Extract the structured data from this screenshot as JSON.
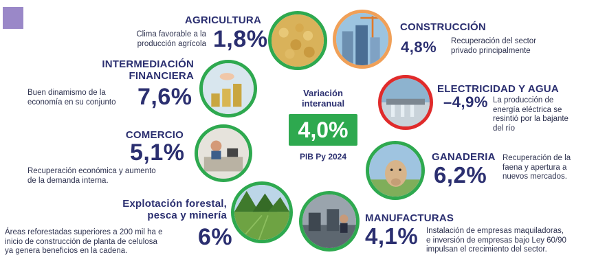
{
  "center": {
    "heading": "Variación\ninteranual",
    "value": "4,0%",
    "footer": "PIB Py 2024"
  },
  "colors": {
    "green": "#2ea94f",
    "navy": "#2b2f70",
    "orange": "#f0a058",
    "red": "#e02b2b",
    "corner": "#9a88c8"
  },
  "sectors": {
    "agricultura": {
      "title": "AGRICULTURA",
      "pct": "1,8%",
      "desc": "Clima favorable a la\nproducción agrícola",
      "icon": "soybeans-icon"
    },
    "construccion": {
      "title": "CONSTRUCCIÓN",
      "pct": "4,8%",
      "desc": "Recuperación del sector\nprivado principalmente",
      "icon": "buildings-crane-icon"
    },
    "intermediacion": {
      "title": "INTERMEDIACIÓN\nFINANCIERA",
      "pct": "7,6%",
      "desc": "Buen dinamismo de la\neconomía en su conjunto",
      "icon": "coins-stack-icon"
    },
    "electricidad": {
      "title": "ELECTRICIDAD Y AGUA",
      "pct": "–4,9%",
      "desc": "La producción de\nenergía eléctrica se\nresintió por la bajante\ndel río",
      "icon": "dam-icon"
    },
    "comercio": {
      "title": "COMERCIO",
      "pct": "5,1%",
      "desc": "Recuperación económica y aumento\nde la demanda interna.",
      "icon": "shop-counter-icon"
    },
    "ganaderia": {
      "title": "GANADERIA",
      "pct": "6,2%",
      "desc": "Recuperación de la\nfaena y apertura a\nnuevos mercados.",
      "icon": "cow-icon"
    },
    "forestal": {
      "title": "Explotación forestal,\npesca y minería",
      "pct": "6%",
      "desc": "Áreas reforestadas superiores a 200 mil ha e\ninicio de construcción de planta de celulosa\nya genera beneficios en la cadena.",
      "icon": "forest-icon"
    },
    "manufacturas": {
      "title": "MANUFACTURAS",
      "pct": "4,1%",
      "desc": "Instalación de empresas maquiladoras,\ne inversión de empresas bajo Ley 60/90\nimpulsan el crecimiento del sector.",
      "icon": "factory-workers-icon"
    }
  }
}
